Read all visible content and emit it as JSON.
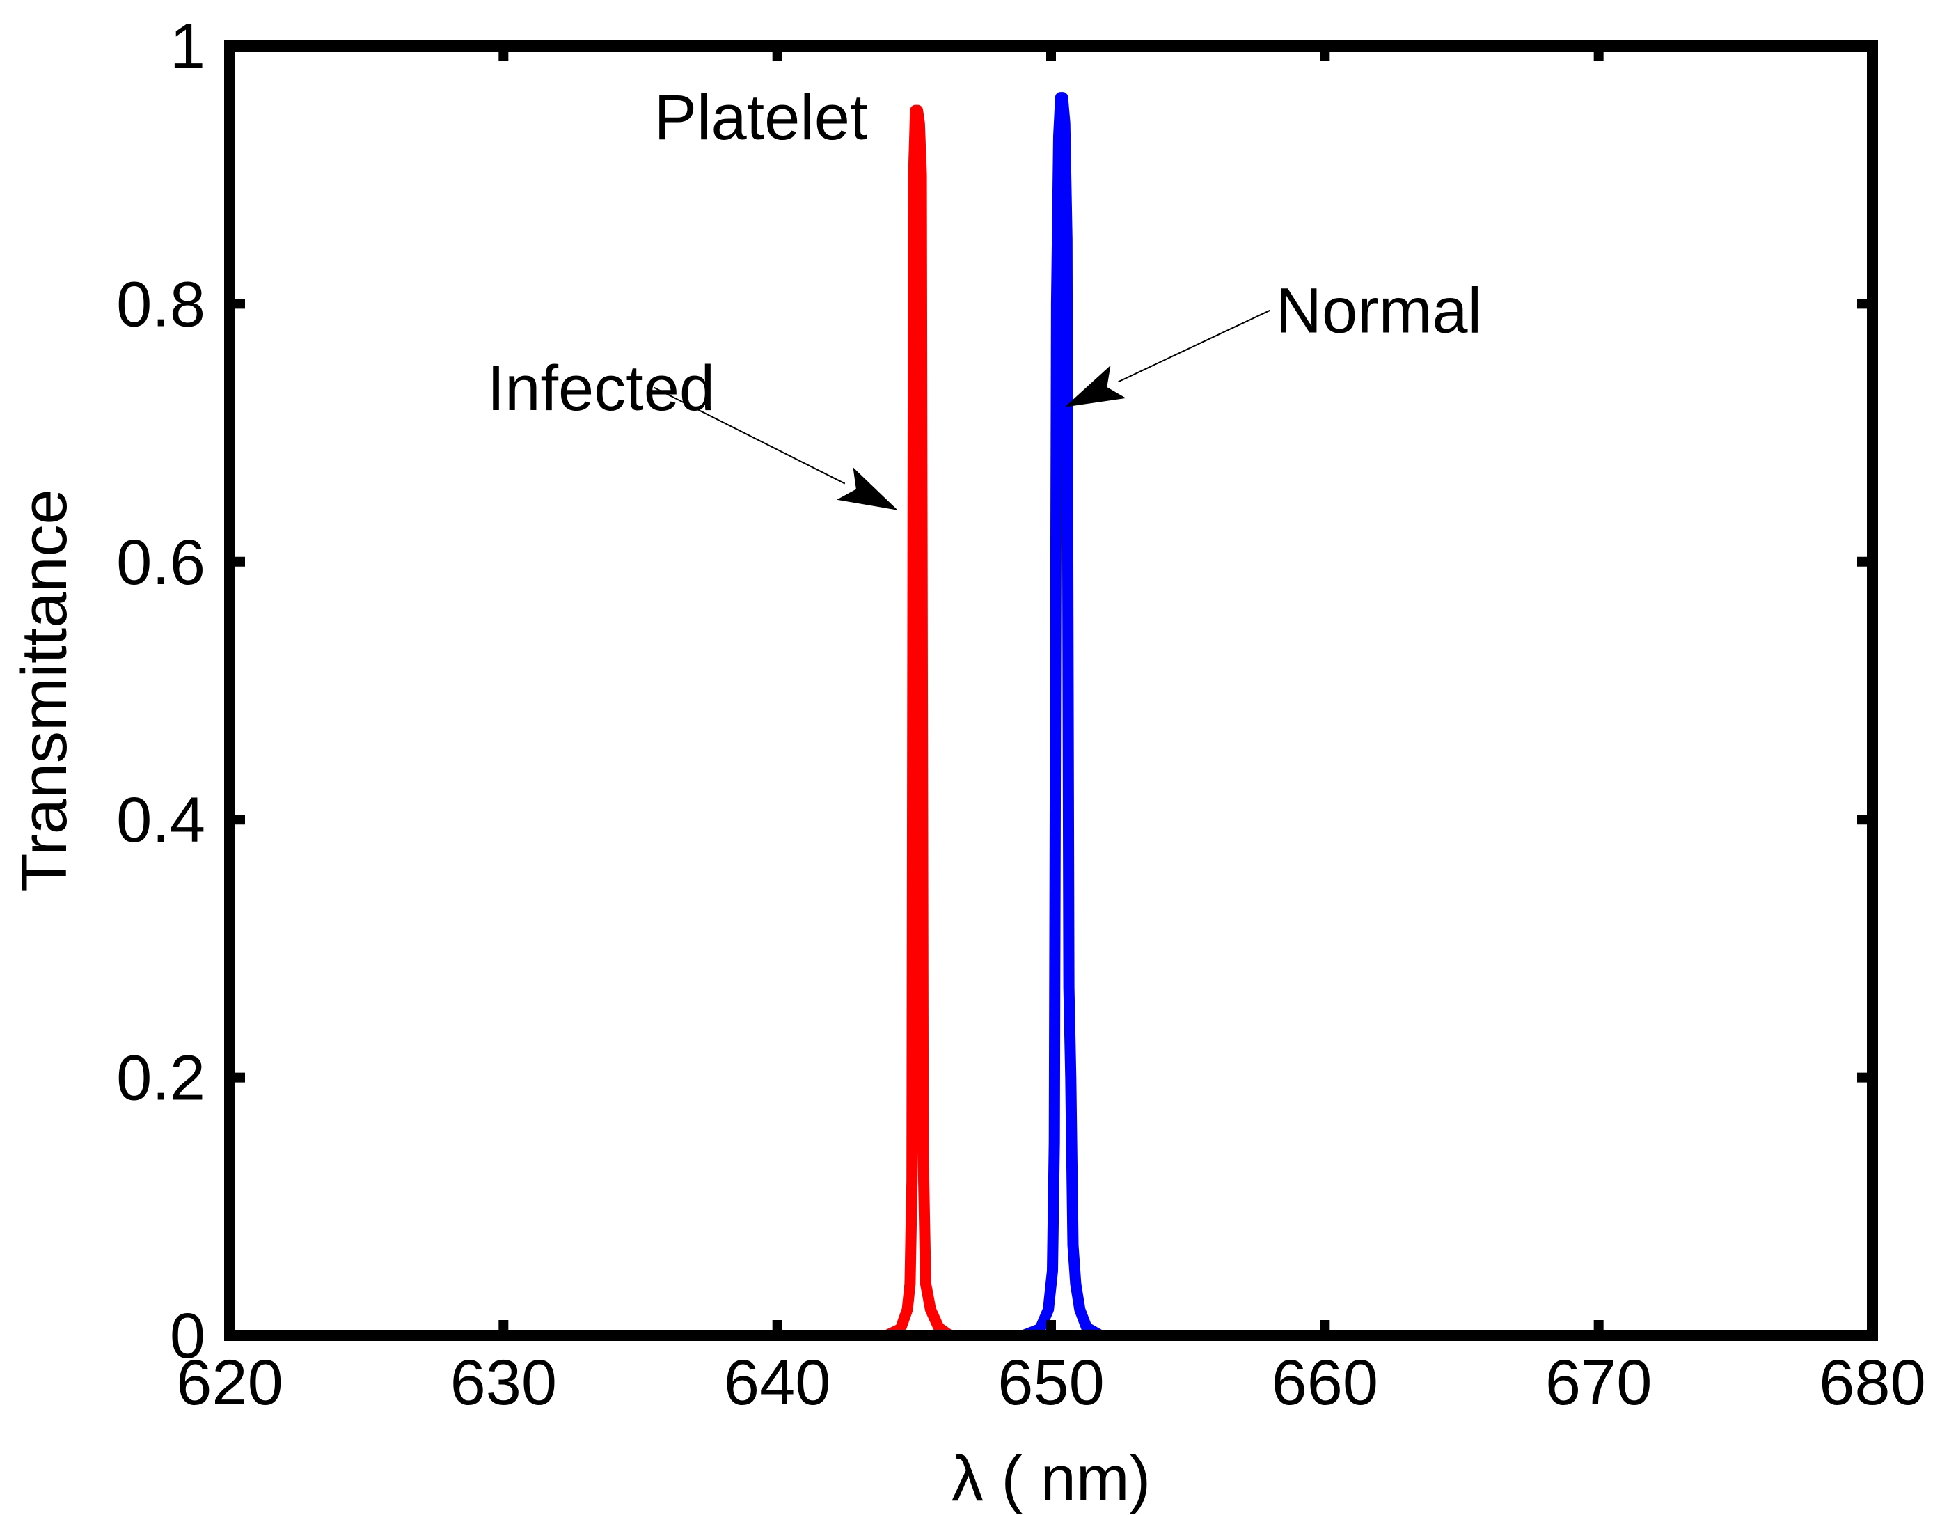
{
  "chart_data": {
    "type": "line",
    "title": "",
    "xlabel": "λ ( nm)",
    "ylabel": "Transmittance",
    "xlim": [
      620,
      680
    ],
    "ylim": [
      0,
      1
    ],
    "xticks": [
      620,
      630,
      640,
      650,
      660,
      670,
      680
    ],
    "yticks": [
      0,
      0.2,
      0.4,
      0.6,
      0.8,
      1
    ],
    "xtick_labels": [
      "620",
      "630",
      "640",
      "650",
      "660",
      "670",
      "680"
    ],
    "ytick_labels": [
      "0",
      "0.2",
      "0.4",
      "0.6",
      "0.8",
      "1"
    ],
    "grid": false,
    "series": [
      {
        "name": "Normal",
        "color": "#0000ff",
        "x": [
          620,
          649.0,
          649.6,
          649.9,
          650.05,
          650.12,
          650.2,
          650.28,
          650.35,
          650.42,
          650.5,
          650.58,
          650.65,
          650.72,
          650.8,
          650.9,
          651.05,
          651.3,
          651.8,
          680
        ],
        "y": [
          0,
          0,
          0.005,
          0.02,
          0.05,
          0.15,
          0.8,
          0.93,
          0.96,
          0.96,
          0.94,
          0.85,
          0.27,
          0.2,
          0.07,
          0.04,
          0.02,
          0.006,
          0,
          0
        ]
      },
      {
        "name": "Infected",
        "color": "#ff0000",
        "x": [
          620,
          644.0,
          644.5,
          644.75,
          644.85,
          644.92,
          644.98,
          645.05,
          645.12,
          645.19,
          645.26,
          645.33,
          645.42,
          645.6,
          645.9,
          646.3,
          680
        ],
        "y": [
          0,
          0,
          0.005,
          0.02,
          0.04,
          0.12,
          0.9,
          0.95,
          0.95,
          0.94,
          0.9,
          0.14,
          0.04,
          0.02,
          0.006,
          0,
          0
        ]
      }
    ],
    "annotations": [
      {
        "text": "Platelet",
        "x": 635.5,
        "y": 0.945,
        "arrow": false
      },
      {
        "text": "Infected",
        "x": 629.4,
        "y": 0.735,
        "arrow": true,
        "arrow_from": [
          635.5,
          0.735
        ],
        "arrow_to": [
          644.4,
          0.64
        ]
      },
      {
        "text": "Normal",
        "x": 658.2,
        "y": 0.795,
        "arrow": true,
        "arrow_from": [
          658.0,
          0.795
        ],
        "arrow_to": [
          650.5,
          0.72
        ]
      }
    ]
  }
}
